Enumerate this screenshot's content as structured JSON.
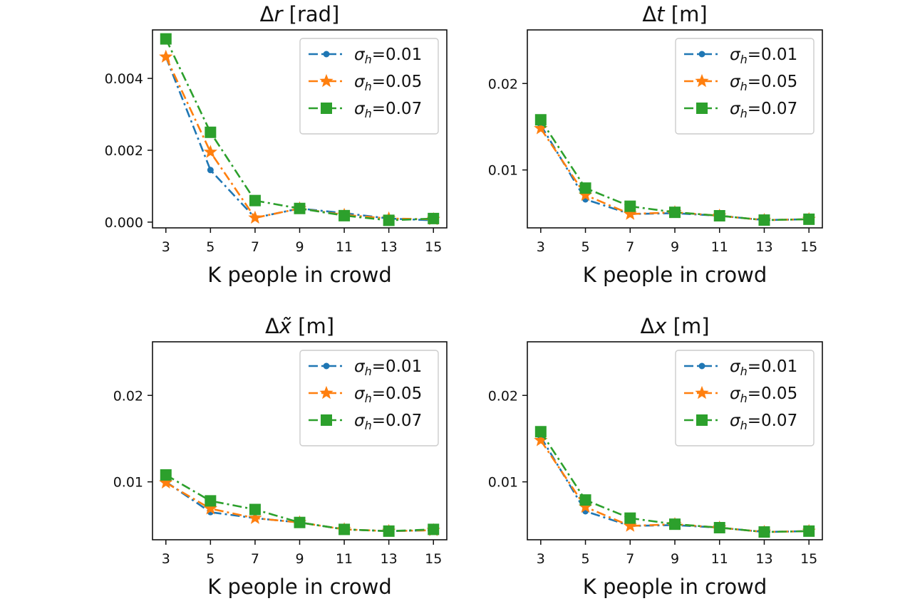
{
  "figure": {
    "legend_symbol": "σ",
    "legend_subscript": "h"
  },
  "colors": {
    "s001": "#1f77b4",
    "s005": "#ff7f0e",
    "s007": "#2ca02c"
  },
  "chart_data": [
    {
      "type": "line",
      "title_prefix": "Δ",
      "title_var": "r",
      "title_unit": " [rad]",
      "xlabel": "K people in crowd",
      "ylabel": "",
      "x": [
        3,
        5,
        7,
        9,
        11,
        13,
        15
      ],
      "xticks": [
        "3",
        "5",
        "7",
        "9",
        "11",
        "13",
        "15"
      ],
      "xlim": [
        2.4,
        15.6
      ],
      "ylim": [
        -0.00016,
        0.00535
      ],
      "yticks": [
        0.0,
        0.002,
        0.004
      ],
      "ytick_labels": [
        "0.000",
        "0.002",
        "0.004"
      ],
      "legend_position": "top-right",
      "series": [
        {
          "name": "σh=0.01",
          "value_label": "=0.01",
          "marker": "circle",
          "color": "#1f77b4",
          "values": [
            0.0046,
            0.00145,
            0.00012,
            0.00038,
            0.00025,
            0.0001,
            5e-05
          ]
        },
        {
          "name": "σh=0.05",
          "value_label": "=0.05",
          "marker": "star",
          "color": "#ff7f0e",
          "values": [
            0.0046,
            0.00195,
            0.00012,
            0.00038,
            0.0002,
            0.0001,
            8e-05
          ]
        },
        {
          "name": "σh=0.07",
          "value_label": "=0.07",
          "marker": "square",
          "color": "#2ca02c",
          "values": [
            0.0051,
            0.0025,
            0.0006,
            0.00038,
            0.00018,
            5e-05,
            0.0001
          ]
        }
      ]
    },
    {
      "type": "line",
      "title_prefix": "Δ",
      "title_var": "t",
      "title_unit": " [m]",
      "xlabel": "K people in crowd",
      "ylabel": "",
      "x": [
        3,
        5,
        7,
        9,
        11,
        13,
        15
      ],
      "xticks": [
        "3",
        "5",
        "7",
        "9",
        "11",
        "13",
        "15"
      ],
      "xlim": [
        2.4,
        15.6
      ],
      "ylim": [
        0.0033,
        0.0262
      ],
      "yticks": [
        0.01,
        0.02
      ],
      "ytick_labels": [
        "0.01",
        "0.02"
      ],
      "legend_position": "top-right",
      "series": [
        {
          "name": "σh=0.01",
          "value_label": "=0.01",
          "marker": "circle",
          "color": "#1f77b4",
          "values": [
            0.0152,
            0.0066,
            0.0049,
            0.005,
            0.0047,
            0.0042,
            0.0043
          ]
        },
        {
          "name": "σh=0.05",
          "value_label": "=0.05",
          "marker": "star",
          "color": "#ff7f0e",
          "values": [
            0.0148,
            0.0071,
            0.0049,
            0.0051,
            0.0047,
            0.0042,
            0.0043
          ]
        },
        {
          "name": "σh=0.07",
          "value_label": "=0.07",
          "marker": "square",
          "color": "#2ca02c",
          "values": [
            0.0158,
            0.0079,
            0.0058,
            0.0051,
            0.0047,
            0.0042,
            0.0043
          ]
        }
      ]
    },
    {
      "type": "line",
      "title_prefix": "Δ",
      "title_var": "x̃",
      "title_unit": " [m]",
      "xlabel": "K people in crowd",
      "ylabel": "",
      "x": [
        3,
        5,
        7,
        9,
        11,
        13,
        15
      ],
      "xticks": [
        "3",
        "5",
        "7",
        "9",
        "11",
        "13",
        "15"
      ],
      "xlim": [
        2.4,
        15.6
      ],
      "ylim": [
        0.0033,
        0.0262
      ],
      "yticks": [
        0.01,
        0.02
      ],
      "ytick_labels": [
        "0.01",
        "0.02"
      ],
      "legend_position": "top-right",
      "series": [
        {
          "name": "σh=0.01",
          "value_label": "=0.01",
          "marker": "circle",
          "color": "#1f77b4",
          "values": [
            0.01,
            0.0065,
            0.0058,
            0.0053,
            0.0045,
            0.0043,
            0.0044
          ]
        },
        {
          "name": "σh=0.05",
          "value_label": "=0.05",
          "marker": "star",
          "color": "#ff7f0e",
          "values": [
            0.0099,
            0.0069,
            0.0058,
            0.0053,
            0.0045,
            0.0043,
            0.0044
          ]
        },
        {
          "name": "σh=0.07",
          "value_label": "=0.07",
          "marker": "square",
          "color": "#2ca02c",
          "values": [
            0.0108,
            0.0078,
            0.0068,
            0.0053,
            0.0045,
            0.0043,
            0.0045
          ]
        }
      ]
    },
    {
      "type": "line",
      "title_prefix": "Δ",
      "title_var": "x",
      "title_unit": " [m]",
      "xlabel": "K people in crowd",
      "ylabel": "",
      "x": [
        3,
        5,
        7,
        9,
        11,
        13,
        15
      ],
      "xticks": [
        "3",
        "5",
        "7",
        "9",
        "11",
        "13",
        "15"
      ],
      "xlim": [
        2.4,
        15.6
      ],
      "ylim": [
        0.0033,
        0.0262
      ],
      "yticks": [
        0.01,
        0.02
      ],
      "ytick_labels": [
        "0.01",
        "0.02"
      ],
      "legend_position": "top-right",
      "series": [
        {
          "name": "σh=0.01",
          "value_label": "=0.01",
          "marker": "circle",
          "color": "#1f77b4",
          "values": [
            0.0152,
            0.0066,
            0.0049,
            0.005,
            0.0047,
            0.0042,
            0.0043
          ]
        },
        {
          "name": "σh=0.05",
          "value_label": "=0.05",
          "marker": "star",
          "color": "#ff7f0e",
          "values": [
            0.0148,
            0.0071,
            0.0049,
            0.0051,
            0.0047,
            0.0042,
            0.0043
          ]
        },
        {
          "name": "σh=0.07",
          "value_label": "=0.07",
          "marker": "square",
          "color": "#2ca02c",
          "values": [
            0.0158,
            0.0079,
            0.0058,
            0.0051,
            0.0047,
            0.0042,
            0.0043
          ]
        }
      ]
    }
  ]
}
